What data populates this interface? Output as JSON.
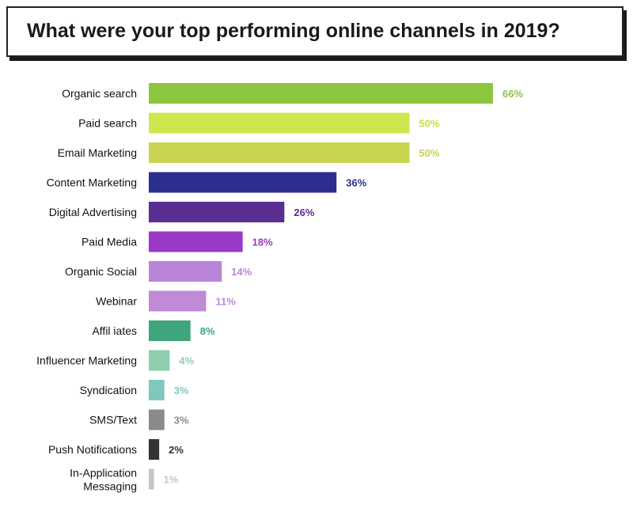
{
  "title": "What were your top performing online channels in 2019?",
  "chart_data": {
    "type": "bar",
    "orientation": "horizontal",
    "title": "What were your top performing online channels in 2019?",
    "xlabel": "",
    "ylabel": "",
    "xlim": [
      0,
      66
    ],
    "grid": false,
    "legend": "none",
    "unit": "%",
    "categories": [
      "Organic search",
      "Paid search",
      "Email Marketing",
      "Content Marketing",
      "Digital Advertising",
      "Paid Media",
      "Organic Social",
      "Webinar",
      "Affil iates",
      "Influencer Marketing",
      "Syndication",
      "SMS/Text",
      "Push Notifications",
      "In-Application Messaging"
    ],
    "values": [
      66,
      50,
      50,
      36,
      26,
      18,
      14,
      11,
      8,
      4,
      3,
      3,
      2,
      1
    ],
    "value_labels": [
      "66%",
      "50%",
      "50%",
      "36%",
      "26%",
      "18%",
      "14%",
      "11%",
      "8%",
      "4%",
      "3%",
      "3%",
      "2%",
      "1%"
    ],
    "bar_colors": [
      "#8cc63f",
      "#cde84e",
      "#c8d452",
      "#2b2e8c",
      "#5a2d91",
      "#9a39c6",
      "#b985d8",
      "#c08ad6",
      "#3fa57c",
      "#8fceaf",
      "#7fc8c0",
      "#8a8a8a",
      "#333333",
      "#c4c4c4"
    ],
    "label_colors": [
      "#8cc63f",
      "#c8dc3c",
      "#c8cf4e",
      "#2b2e8c",
      "#5a2d91",
      "#9a39c6",
      "#b985d8",
      "#c08ad6",
      "#3fa57c",
      "#8fceaf",
      "#7fc8c0",
      "#8a8a8a",
      "#333333",
      "#c4c4c4"
    ]
  }
}
